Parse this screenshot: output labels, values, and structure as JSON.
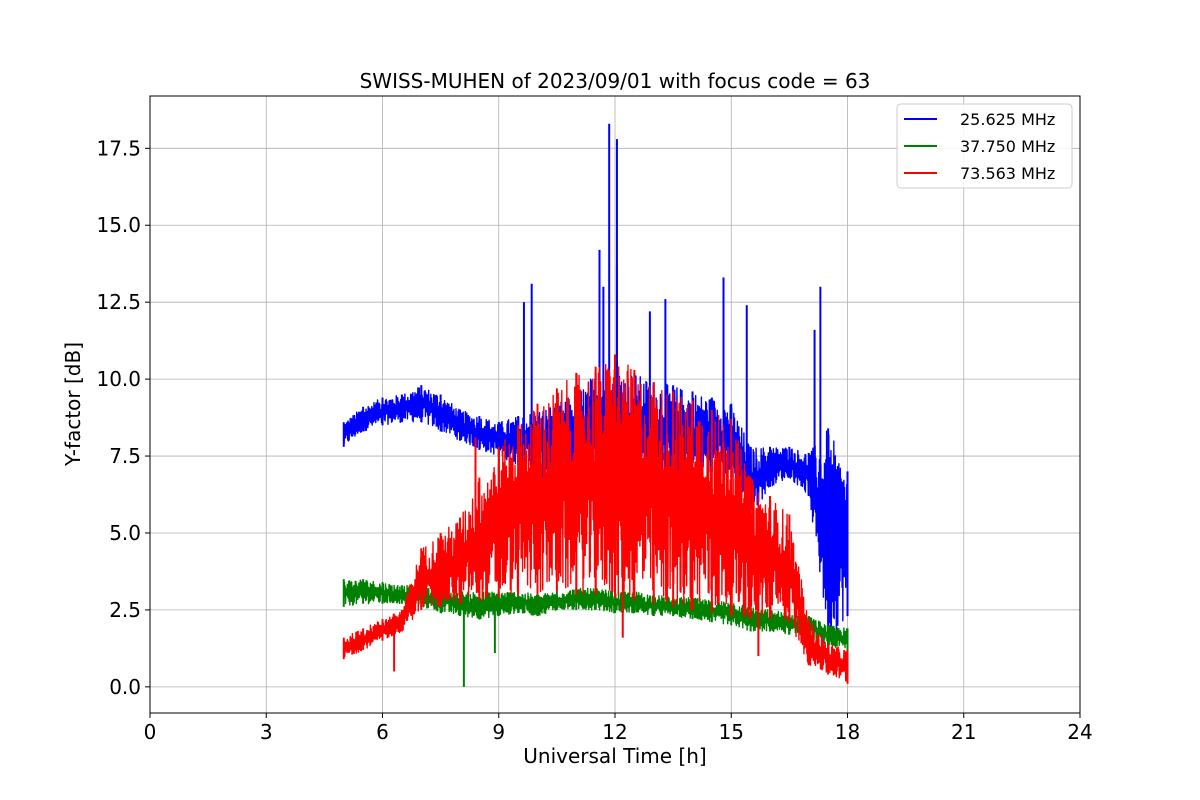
{
  "chart_data": {
    "type": "line",
    "title": "SWISS-MUHEN of 2023/09/01 with focus code = 63",
    "xlabel": "Universal Time [h]",
    "ylabel": "Y-factor [dB]",
    "xlim": [
      0,
      24
    ],
    "ylim": [
      -0.85,
      19.2
    ],
    "xticks": [
      0,
      3,
      6,
      9,
      12,
      15,
      18,
      21,
      24
    ],
    "xtick_labels": [
      "0",
      "3",
      "6",
      "9",
      "12",
      "15",
      "18",
      "21",
      "24"
    ],
    "yticks": [
      0,
      2.5,
      5,
      7.5,
      10,
      12.5,
      15,
      17.5
    ],
    "ytick_labels": [
      "0.0",
      "2.5",
      "5.0",
      "7.5",
      "10.0",
      "12.5",
      "15.0",
      "17.5"
    ],
    "grid": true,
    "legend_position": "top-right",
    "series": [
      {
        "name": "25.625 MHz",
        "color": "#0000ff",
        "x": [
          5.0,
          5.5,
          6.0,
          6.5,
          7.0,
          7.5,
          8.0,
          8.5,
          9.0,
          9.5,
          10.0,
          10.5,
          11.0,
          11.5,
          12.0,
          12.5,
          13.0,
          13.5,
          14.0,
          14.5,
          15.0,
          15.5,
          16.0,
          16.5,
          17.0,
          17.5,
          18.0
        ],
        "y_low": [
          7.8,
          8.3,
          8.5,
          8.6,
          8.6,
          8.3,
          8.0,
          7.7,
          7.5,
          7.2,
          6.8,
          6.6,
          6.5,
          6.5,
          6.6,
          6.6,
          6.6,
          6.7,
          6.8,
          7.0,
          6.8,
          5.5,
          6.5,
          6.8,
          6.2,
          1.5,
          2.3
        ],
        "y_high": [
          8.6,
          9.1,
          9.4,
          9.5,
          9.8,
          9.5,
          9.0,
          8.8,
          8.6,
          8.8,
          9.0,
          9.2,
          9.6,
          10.2,
          10.4,
          10.2,
          9.9,
          9.8,
          9.6,
          9.4,
          9.2,
          7.8,
          7.8,
          7.8,
          7.6,
          8.4,
          7.0
        ],
        "peaks": [
          [
            9.65,
            12.5
          ],
          [
            9.85,
            13.1
          ],
          [
            11.6,
            14.2
          ],
          [
            11.85,
            18.3
          ],
          [
            12.05,
            17.8
          ],
          [
            12.05,
            13.7
          ],
          [
            11.7,
            13.0
          ],
          [
            12.9,
            12.2
          ],
          [
            13.3,
            12.6
          ],
          [
            14.8,
            13.3
          ],
          [
            15.4,
            12.4
          ],
          [
            17.3,
            13.0
          ],
          [
            17.15,
            11.6
          ]
        ]
      },
      {
        "name": "37.750 MHz",
        "color": "#008000",
        "x": [
          5.0,
          5.5,
          6.0,
          6.5,
          7.0,
          7.5,
          8.0,
          8.5,
          9.0,
          9.5,
          10.0,
          10.5,
          11.0,
          11.5,
          12.0,
          12.5,
          13.0,
          13.5,
          14.0,
          14.5,
          15.0,
          15.5,
          16.0,
          16.5,
          17.0,
          17.5,
          18.0
        ],
        "y_low": [
          2.6,
          2.7,
          2.7,
          2.7,
          2.6,
          2.4,
          2.3,
          2.2,
          2.3,
          2.4,
          2.3,
          2.5,
          2.5,
          2.5,
          2.4,
          2.4,
          2.3,
          2.3,
          2.2,
          2.1,
          2.0,
          1.8,
          1.8,
          1.7,
          1.6,
          1.3,
          1.2
        ],
        "y_high": [
          3.5,
          3.5,
          3.4,
          3.3,
          3.3,
          3.2,
          3.1,
          3.1,
          3.1,
          3.1,
          3.0,
          3.1,
          3.2,
          3.2,
          3.1,
          3.1,
          3.0,
          2.9,
          2.9,
          2.8,
          2.8,
          2.6,
          2.5,
          2.4,
          2.3,
          2.0,
          1.9
        ],
        "dips": [
          [
            8.1,
            0.0
          ],
          [
            8.9,
            1.1
          ]
        ]
      },
      {
        "name": "73.563 MHz",
        "color": "#ff0000",
        "x": [
          5.0,
          5.5,
          6.0,
          6.5,
          7.0,
          7.5,
          8.0,
          8.5,
          9.0,
          9.5,
          10.0,
          10.5,
          11.0,
          11.5,
          12.0,
          12.5,
          13.0,
          13.5,
          14.0,
          14.5,
          15.0,
          15.5,
          16.0,
          16.5,
          17.0,
          17.5,
          18.0
        ],
        "y_low": [
          0.9,
          1.2,
          1.5,
          1.8,
          2.5,
          2.6,
          2.7,
          2.8,
          2.9,
          3.0,
          3.0,
          3.1,
          3.0,
          3.0,
          2.9,
          2.8,
          2.7,
          2.6,
          2.5,
          2.4,
          2.3,
          2.2,
          2.2,
          2.1,
          0.7,
          0.4,
          0.1
        ],
        "y_high": [
          1.6,
          1.9,
          2.2,
          2.5,
          4.5,
          5.0,
          5.5,
          6.8,
          7.8,
          8.5,
          9.2,
          9.7,
          10.2,
          10.4,
          10.8,
          10.3,
          9.9,
          9.6,
          9.3,
          9.0,
          8.7,
          6.8,
          6.2,
          5.6,
          2.2,
          1.4,
          1.2
        ],
        "spikes": [
          [
            6.3,
            0.5
          ],
          [
            8.4,
            8.1
          ],
          [
            12.2,
            1.6
          ],
          [
            15.7,
            1.0
          ]
        ]
      }
    ]
  }
}
